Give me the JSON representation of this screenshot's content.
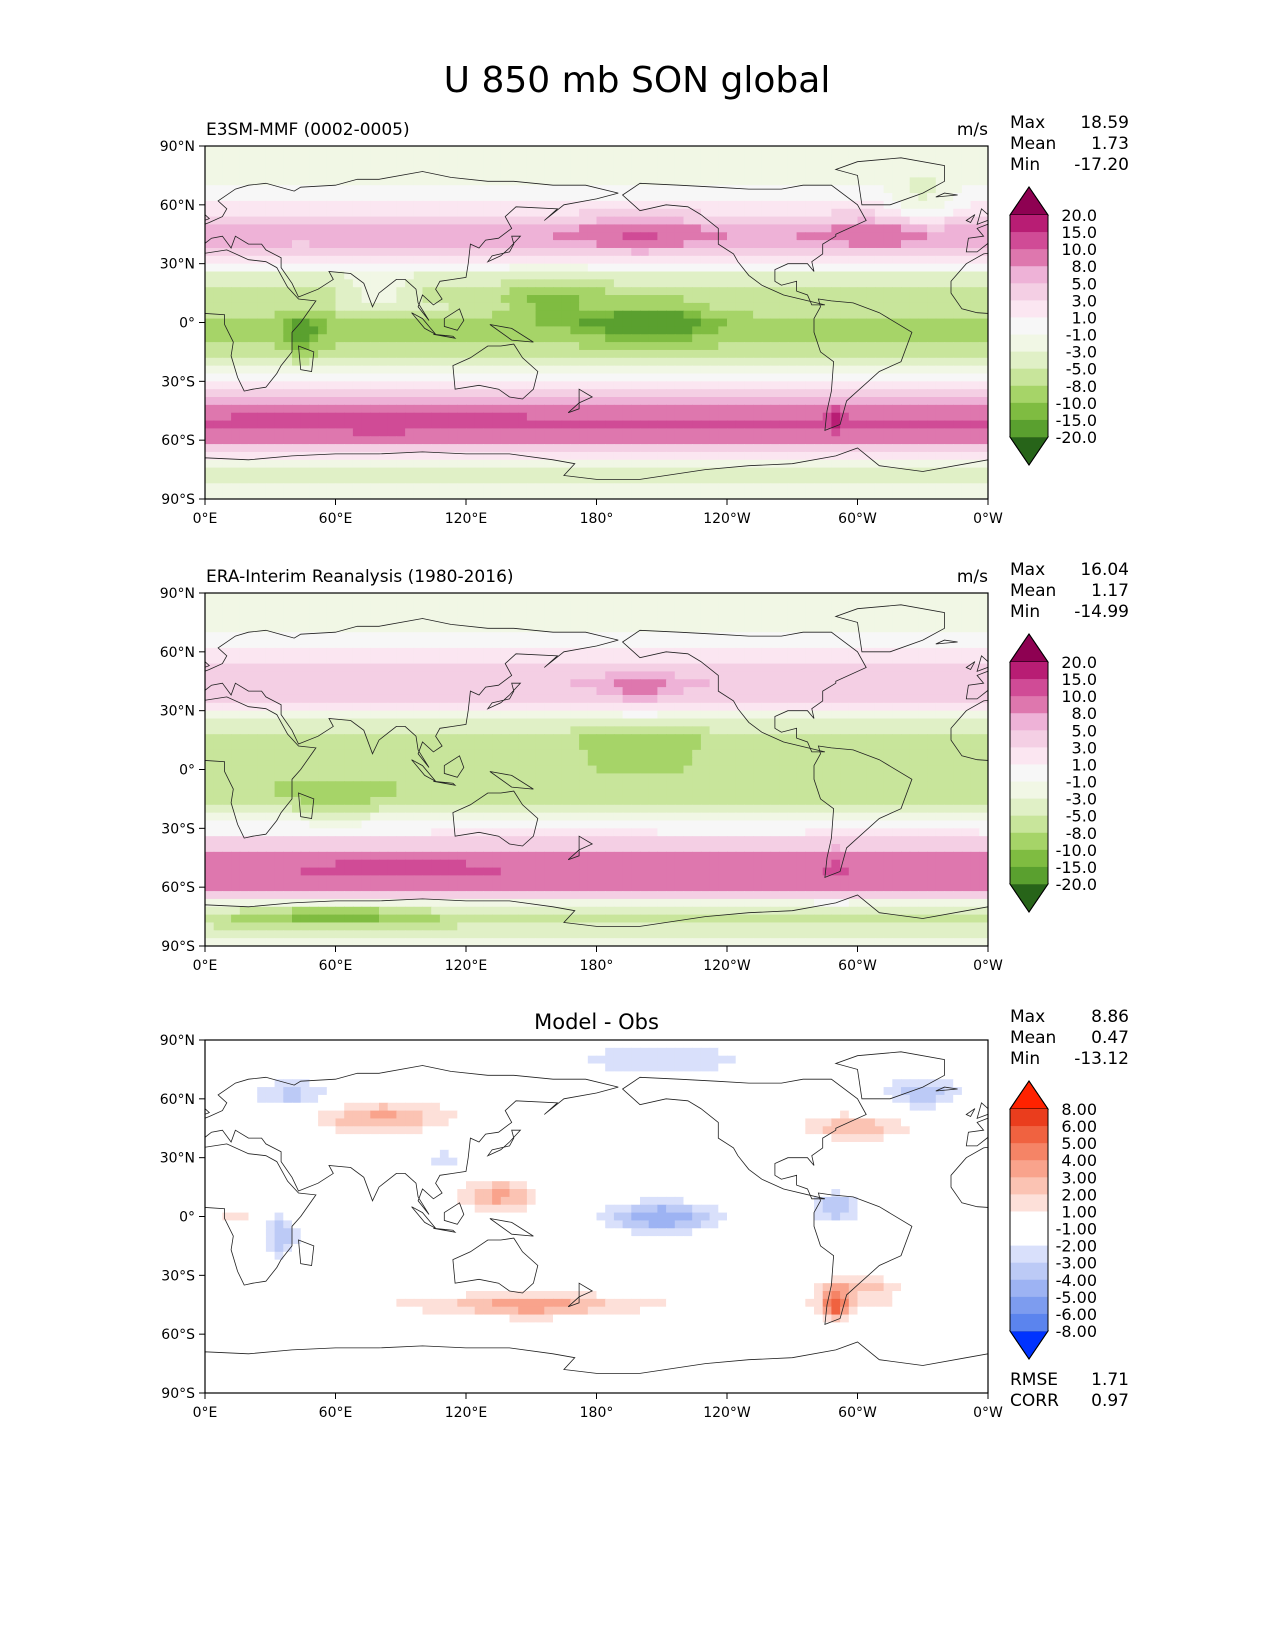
{
  "figure": {
    "title": "U 850 mb SON global"
  },
  "colors": {
    "div_pg": [
      "#276419",
      "#3d8a1f",
      "#5aa02f",
      "#7fbc41",
      "#a6d468",
      "#c8e59b",
      "#e0f0c6",
      "#f1f7e5",
      "#f7f7f7",
      "#fbe6f1",
      "#f4cfe4",
      "#eeb2d7",
      "#de77ae",
      "#d04b96",
      "#b81d74",
      "#8e0152"
    ],
    "diff": [
      "#0033ff",
      "#3366f0",
      "#5b84ee",
      "#7d9cef",
      "#9db3f3",
      "#bccaf6",
      "#d9e0fb",
      "#ffffff",
      "#ffffff",
      "#fde0d9",
      "#fbc3b3",
      "#f9a38c",
      "#f58466",
      "#f06240",
      "#ea3d1d",
      "#ff2200"
    ],
    "coast": "#222222"
  },
  "chart_data": [
    {
      "type": "heatmap",
      "panel": "test",
      "title_left": "E3SM-MMF (0002-0005)",
      "title_right": "m/s",
      "stats": [
        {
          "label": "Max",
          "value": "18.59"
        },
        {
          "label": "Mean",
          "value": "1.73"
        },
        {
          "label": "Min",
          "value": "-17.20"
        }
      ],
      "colorbar_levels": [
        "20.0",
        "15.0",
        "10.0",
        "8.0",
        "5.0",
        "3.0",
        "1.0",
        "-1.0",
        "-3.0",
        "-5.0",
        "-8.0",
        "-10.0",
        "-15.0",
        "-20.0"
      ],
      "colormap": "div_pg",
      "x_ticks": [
        "0°E",
        "60°E",
        "120°E",
        "180°",
        "120°W",
        "60°W",
        "0°W"
      ],
      "y_ticks": [
        "90°N",
        "60°N",
        "30°N",
        "0°",
        "30°S",
        "60°S",
        "90°S"
      ],
      "xlim": [
        0,
        360
      ],
      "ylim": [
        -90,
        90
      ],
      "zonal_profile": [
        [
          -90,
          0
        ],
        [
          -75,
          -2
        ],
        [
          -68,
          3
        ],
        [
          -60,
          12
        ],
        [
          -52,
          16
        ],
        [
          -45,
          14
        ],
        [
          -38,
          7
        ],
        [
          -30,
          2
        ],
        [
          -20,
          -2
        ],
        [
          -10,
          -5
        ],
        [
          0,
          -6
        ],
        [
          8,
          -3
        ],
        [
          15,
          -4
        ],
        [
          25,
          -1
        ],
        [
          35,
          6
        ],
        [
          45,
          10
        ],
        [
          55,
          5
        ],
        [
          70,
          1
        ],
        [
          90,
          0
        ]
      ],
      "features": [
        {
          "lon": 160,
          "lat": 10,
          "r_lon": 20,
          "r_lat": 10,
          "val": -6
        },
        {
          "lon": 205,
          "lat": 0,
          "r_lon": 30,
          "r_lat": 10,
          "val": -8
        },
        {
          "lon": 45,
          "lat": -5,
          "r_lon": 10,
          "r_lat": 12,
          "val": -6
        },
        {
          "lon": 80,
          "lat": 15,
          "r_lon": 15,
          "r_lat": 8,
          "val": 4
        },
        {
          "lon": 200,
          "lat": 45,
          "r_lon": 25,
          "r_lat": 8,
          "val": 6
        },
        {
          "lon": 310,
          "lat": 45,
          "r_lon": 25,
          "r_lat": 8,
          "val": 4
        },
        {
          "lon": 80,
          "lat": -50,
          "r_lon": 40,
          "r_lat": 6,
          "val": 3
        },
        {
          "lon": 290,
          "lat": -50,
          "r_lon": 4,
          "r_lat": 6,
          "val": 6
        },
        {
          "lon": 330,
          "lat": 60,
          "r_lon": 15,
          "r_lat": 15,
          "val": -4
        }
      ]
    },
    {
      "type": "heatmap",
      "panel": "reference",
      "title_left": "ERA-Interim Reanalysis (1980-2016)",
      "title_right": "m/s",
      "stats": [
        {
          "label": "Max",
          "value": "16.04"
        },
        {
          "label": "Mean",
          "value": "1.17"
        },
        {
          "label": "Min",
          "value": "-14.99"
        }
      ],
      "colorbar_levels": [
        "20.0",
        "15.0",
        "10.0",
        "8.0",
        "5.0",
        "3.0",
        "1.0",
        "-1.0",
        "-3.0",
        "-5.0",
        "-8.0",
        "-10.0",
        "-15.0",
        "-20.0"
      ],
      "colormap": "div_pg",
      "x_ticks": [
        "0°E",
        "60°E",
        "120°E",
        "180°",
        "120°W",
        "60°W",
        "0°W"
      ],
      "y_ticks": [
        "90°N",
        "60°N",
        "30°N",
        "0°",
        "30°S",
        "60°S",
        "90°S"
      ],
      "xlim": [
        0,
        360
      ],
      "ylim": [
        -90,
        90
      ],
      "zonal_profile": [
        [
          -90,
          0
        ],
        [
          -75,
          -4
        ],
        [
          -68,
          1
        ],
        [
          -60,
          11
        ],
        [
          -52,
          14
        ],
        [
          -45,
          12
        ],
        [
          -38,
          6
        ],
        [
          -30,
          2
        ],
        [
          -20,
          -2
        ],
        [
          -10,
          -5
        ],
        [
          0,
          -4
        ],
        [
          8,
          -3
        ],
        [
          15,
          -4
        ],
        [
          25,
          -1
        ],
        [
          35,
          5
        ],
        [
          45,
          8
        ],
        [
          55,
          5
        ],
        [
          70,
          1
        ],
        [
          90,
          0
        ]
      ],
      "features": [
        {
          "lon": 200,
          "lat": 10,
          "r_lon": 30,
          "r_lat": 10,
          "val": -4
        },
        {
          "lon": 60,
          "lat": -15,
          "r_lon": 20,
          "r_lat": 8,
          "val": -4
        },
        {
          "lon": 90,
          "lat": -50,
          "r_lon": 40,
          "r_lat": 6,
          "val": 4
        },
        {
          "lon": 200,
          "lat": 40,
          "r_lon": 20,
          "r_lat": 8,
          "val": 4
        },
        {
          "lon": 290,
          "lat": -50,
          "r_lon": 4,
          "r_lat": 6,
          "val": 6
        },
        {
          "lon": 60,
          "lat": -75,
          "r_lon": 40,
          "r_lat": 5,
          "val": -6
        }
      ]
    },
    {
      "type": "heatmap",
      "panel": "difference",
      "title_center": "Model - Obs",
      "stats": [
        {
          "label": "Max",
          "value": "8.86"
        },
        {
          "label": "Mean",
          "value": "0.47"
        },
        {
          "label": "Min",
          "value": "-13.12"
        }
      ],
      "colorbar_levels": [
        "8.00",
        "6.00",
        "5.00",
        "4.00",
        "3.00",
        "2.00",
        "1.00",
        "-1.00",
        "-2.00",
        "-3.00",
        "-4.00",
        "-5.00",
        "-6.00",
        "-8.00"
      ],
      "colormap": "diff",
      "metrics": [
        {
          "label": "RMSE",
          "value": "1.71"
        },
        {
          "label": "CORR",
          "value": "0.97"
        }
      ],
      "x_ticks": [
        "0°E",
        "60°E",
        "120°E",
        "180°",
        "120°W",
        "60°W",
        "0°W"
      ],
      "y_ticks": [
        "90°N",
        "60°N",
        "30°N",
        "0°",
        "30°S",
        "60°S",
        "90°S"
      ],
      "xlim": [
        0,
        360
      ],
      "ylim": [
        -90,
        90
      ],
      "zonal_profile": [
        [
          -90,
          0
        ],
        [
          -75,
          0
        ],
        [
          -70,
          2
        ],
        [
          -65,
          0
        ],
        [
          -55,
          1
        ],
        [
          -45,
          2
        ],
        [
          -38,
          1
        ],
        [
          -30,
          0
        ],
        [
          0,
          0
        ],
        [
          45,
          1
        ],
        [
          55,
          1.5
        ],
        [
          65,
          0
        ],
        [
          90,
          0
        ]
      ],
      "features": [
        {
          "lon": 135,
          "lat": 10,
          "r_lon": 20,
          "r_lat": 10,
          "val": 4
        },
        {
          "lon": 210,
          "lat": 0,
          "r_lon": 25,
          "r_lat": 8,
          "val": -4
        },
        {
          "lon": 35,
          "lat": -10,
          "r_lon": 8,
          "r_lat": 10,
          "val": -3
        },
        {
          "lon": 15,
          "lat": 0,
          "r_lon": 8,
          "r_lat": 6,
          "val": 3
        },
        {
          "lon": 290,
          "lat": -45,
          "r_lon": 6,
          "r_lat": 8,
          "val": 5
        },
        {
          "lon": 300,
          "lat": -35,
          "r_lon": 20,
          "r_lat": 6,
          "val": 3
        },
        {
          "lon": 150,
          "lat": -45,
          "r_lon": 35,
          "r_lat": 6,
          "val": 3
        },
        {
          "lon": 290,
          "lat": 5,
          "r_lon": 12,
          "r_lat": 8,
          "val": -3
        },
        {
          "lon": 330,
          "lat": 60,
          "r_lon": 20,
          "r_lat": 10,
          "val": -3
        },
        {
          "lon": 40,
          "lat": 60,
          "r_lon": 20,
          "r_lat": 8,
          "val": -3
        },
        {
          "lon": 210,
          "lat": 80,
          "r_lon": 40,
          "r_lat": 8,
          "val": -2
        },
        {
          "lon": 300,
          "lat": 45,
          "r_lon": 25,
          "r_lat": 6,
          "val": 3
        },
        {
          "lon": 80,
          "lat": 50,
          "r_lon": 30,
          "r_lat": 8,
          "val": 3
        },
        {
          "lon": 110,
          "lat": 30,
          "r_lon": 20,
          "r_lat": 6,
          "val": -2
        }
      ]
    }
  ]
}
